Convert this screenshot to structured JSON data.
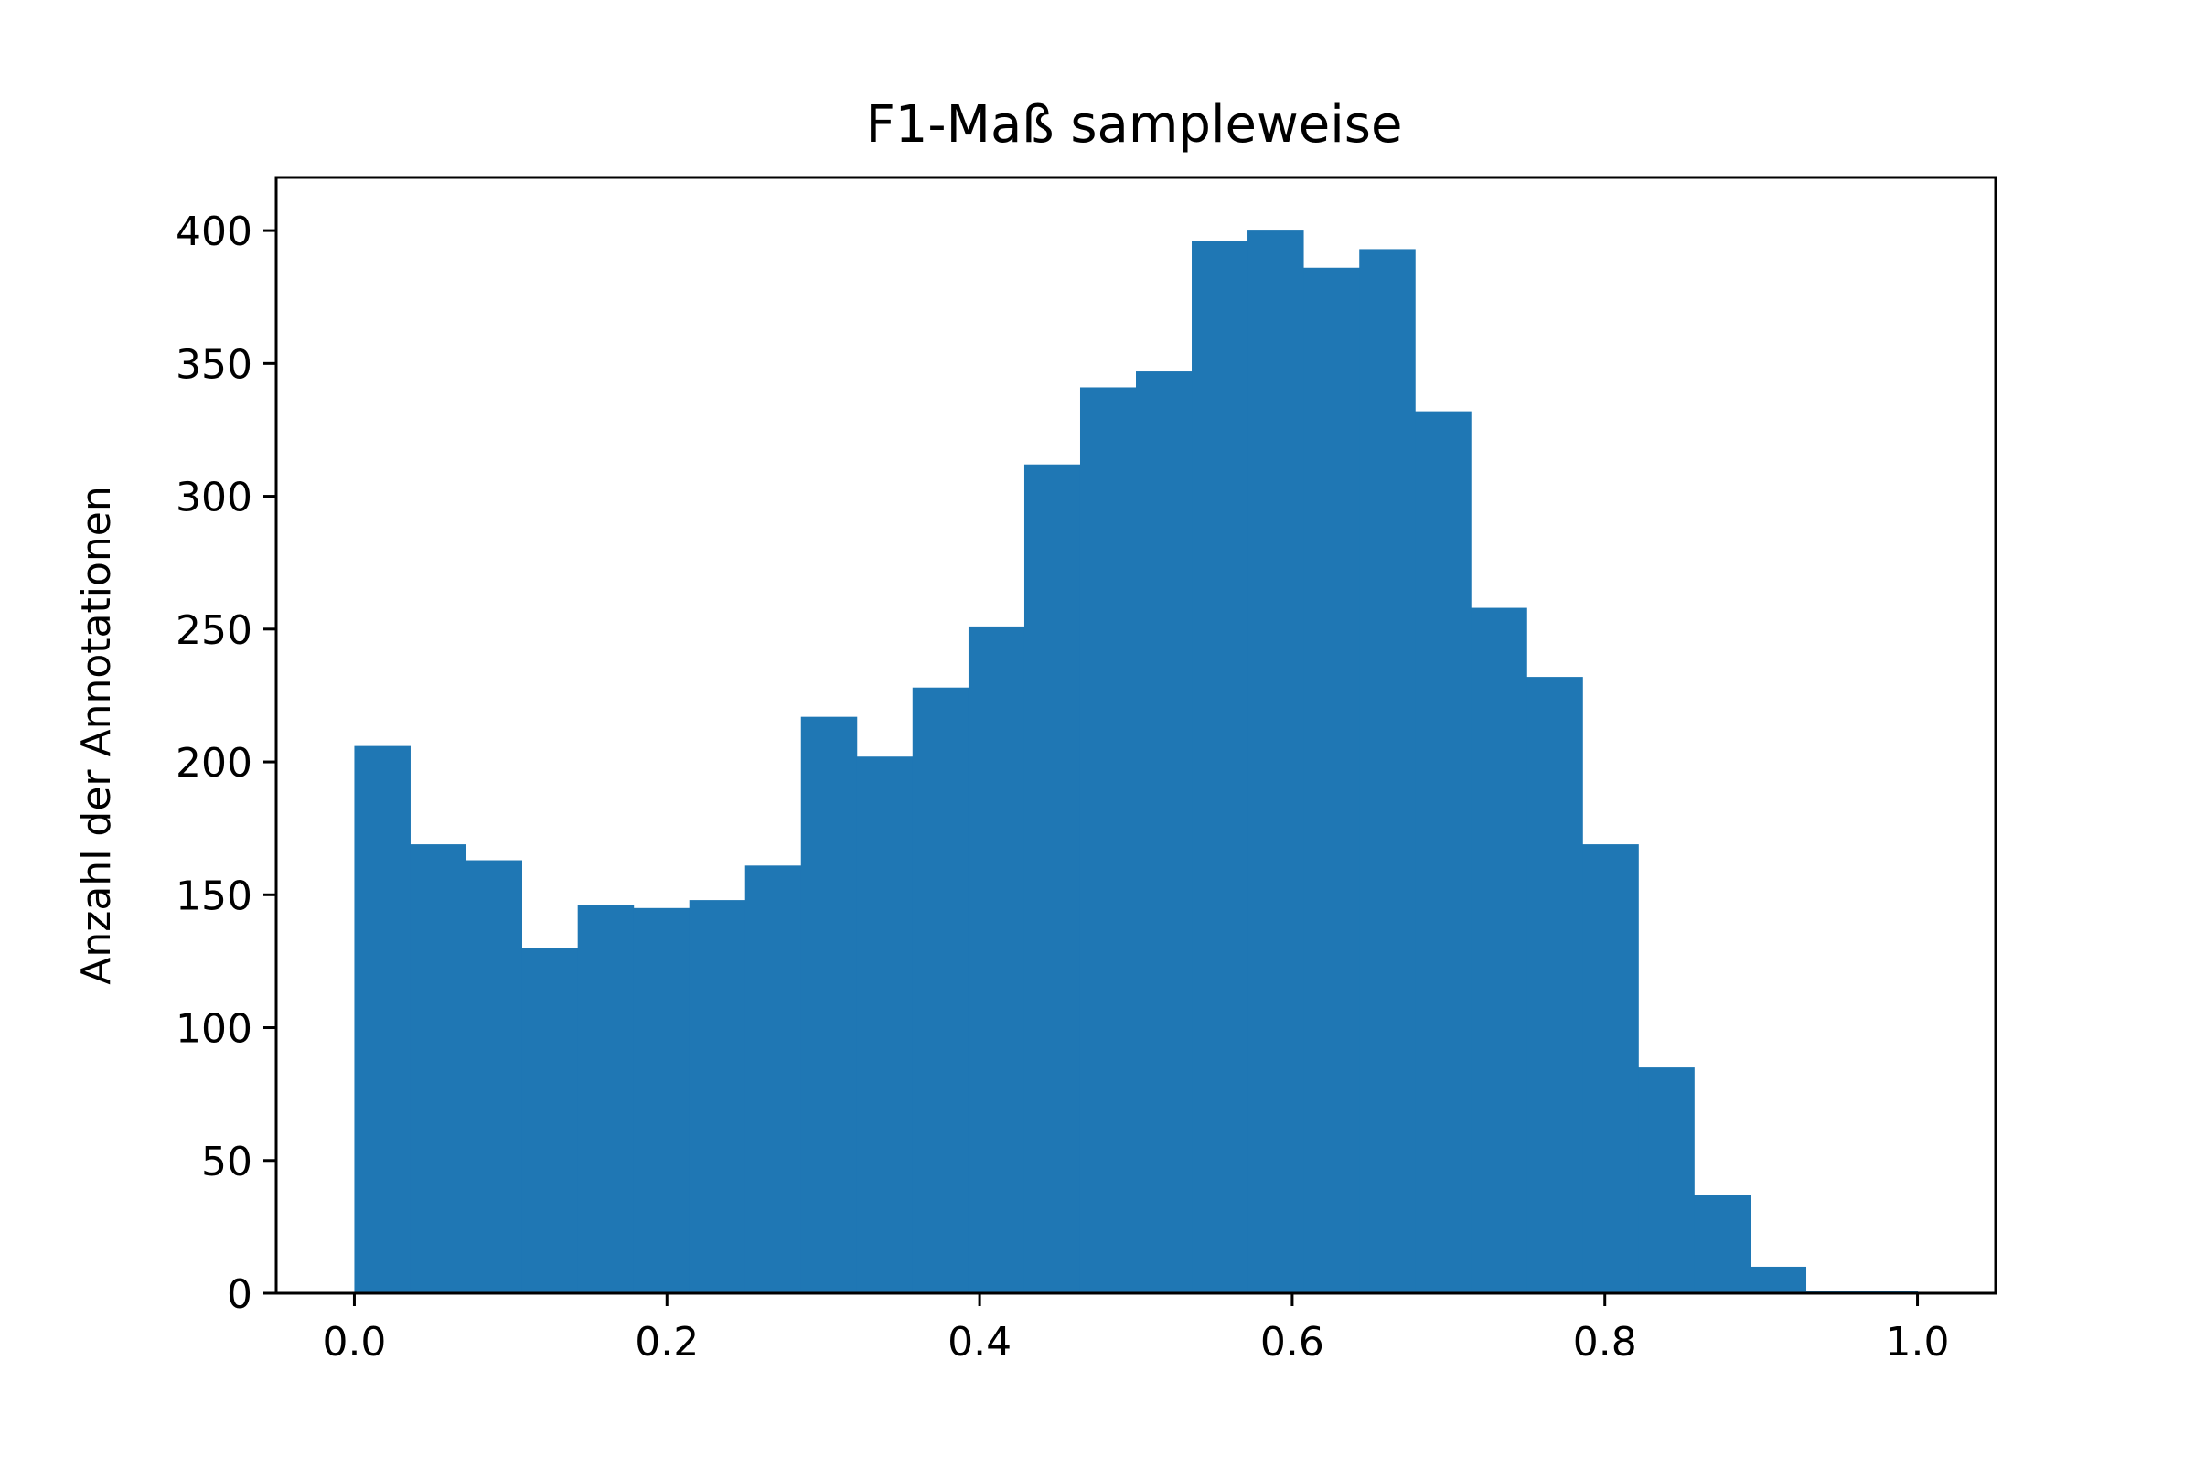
{
  "chart_data": {
    "type": "bar",
    "title": "F1-Maß sampleweise",
    "xlabel": "",
    "ylabel": "Anzahl der Annotationen",
    "bin_edges": [
      0.0,
      0.0357,
      0.0714,
      0.1071,
      0.1429,
      0.1786,
      0.2143,
      0.25,
      0.2857,
      0.3214,
      0.3571,
      0.3929,
      0.4286,
      0.4643,
      0.5,
      0.5357,
      0.5714,
      0.6071,
      0.6429,
      0.6786,
      0.7143,
      0.75,
      0.7857,
      0.8214,
      0.8571,
      0.8929,
      0.9286,
      0.9643,
      1.0
    ],
    "values": [
      206,
      169,
      163,
      130,
      146,
      145,
      148,
      161,
      217,
      202,
      228,
      251,
      312,
      341,
      347,
      396,
      400,
      386,
      393,
      332,
      258,
      232,
      169,
      85,
      37,
      10,
      1,
      1
    ],
    "xlim": [
      -0.05,
      1.05
    ],
    "ylim": [
      0,
      420
    ],
    "xticks": [
      0.0,
      0.2,
      0.4,
      0.6,
      0.8,
      1.0
    ],
    "xtick_labels": [
      "0.0",
      "0.2",
      "0.4",
      "0.6",
      "0.8",
      "1.0"
    ],
    "yticks": [
      0,
      50,
      100,
      150,
      200,
      250,
      300,
      350,
      400
    ],
    "ytick_labels": [
      "0",
      "50",
      "100",
      "150",
      "200",
      "250",
      "300",
      "350",
      "400"
    ],
    "bar_color": "#1f77b4",
    "grid": false,
    "legend": "none"
  }
}
